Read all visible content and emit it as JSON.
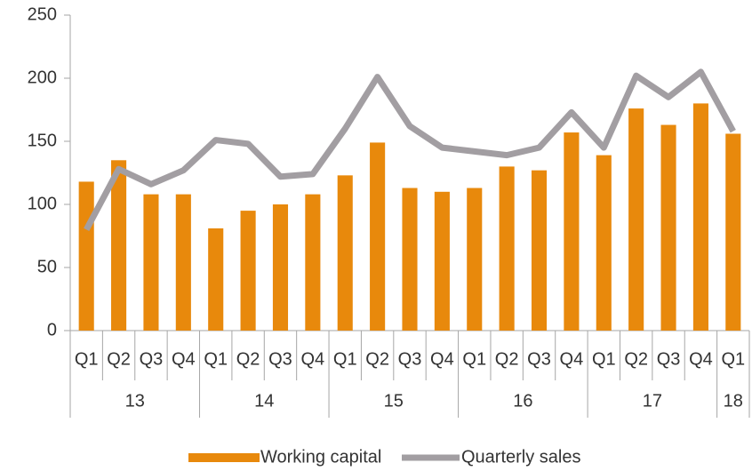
{
  "chart_data": {
    "type": "bar",
    "groups": [
      {
        "label": "13",
        "categories": [
          "Q1",
          "Q2",
          "Q3",
          "Q4"
        ]
      },
      {
        "label": "14",
        "categories": [
          "Q1",
          "Q2",
          "Q3",
          "Q4"
        ]
      },
      {
        "label": "15",
        "categories": [
          "Q1",
          "Q2",
          "Q3",
          "Q4"
        ]
      },
      {
        "label": "16",
        "categories": [
          "Q1",
          "Q2",
          "Q3",
          "Q4"
        ]
      },
      {
        "label": "17",
        "categories": [
          "Q1",
          "Q2",
          "Q3",
          "Q4"
        ]
      },
      {
        "label": "18",
        "categories": [
          "Q1"
        ]
      }
    ],
    "series": [
      {
        "name": "Working capital",
        "type": "bar",
        "color": "#e8890c",
        "values": [
          118,
          135,
          108,
          108,
          81,
          95,
          100,
          108,
          123,
          149,
          113,
          110,
          113,
          130,
          127,
          157,
          139,
          176,
          163,
          180,
          156
        ]
      },
      {
        "name": "Quarterly sales",
        "type": "line",
        "color": "#a29ea2",
        "values": [
          80,
          128,
          116,
          127,
          151,
          148,
          122,
          124,
          160,
          201,
          162,
          145,
          142,
          139,
          145,
          173,
          145,
          202,
          185,
          205,
          158
        ]
      }
    ],
    "ylim": [
      0,
      250
    ],
    "yticks": [
      0,
      50,
      100,
      150,
      200,
      250
    ],
    "grid": false,
    "legend": "bottom"
  }
}
